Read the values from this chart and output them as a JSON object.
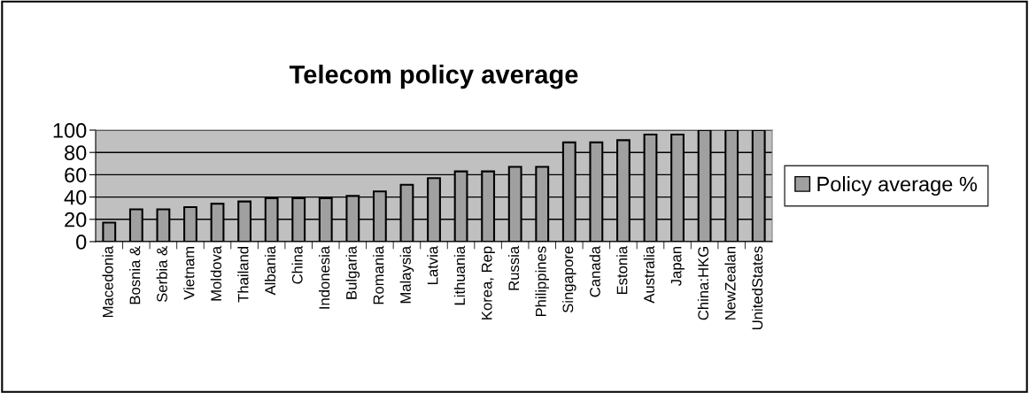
{
  "chart_data": {
    "type": "bar",
    "title": "Telecom policy average",
    "categories": [
      "Macedonia",
      "Bosnia &",
      "Serbia &",
      "Vietnam",
      "Moldova",
      "Thailand",
      "Albania",
      "China",
      "Indonesia",
      "Bulgaria",
      "Romania",
      "Malaysia",
      "Latvia",
      "Lithuania",
      "Korea, Rep",
      "Russia",
      "Philippines",
      "Singapore",
      "Canada",
      "Estonia",
      "Australia",
      "Japan",
      "China:HKG",
      "NewZealan",
      "UnitedStates"
    ],
    "series": [
      {
        "name": "Policy average %",
        "color": "#a0a0a0",
        "values": [
          17,
          29,
          29,
          31,
          34,
          36,
          39,
          39,
          39,
          41,
          45,
          51,
          57,
          63,
          63,
          67,
          67,
          89,
          89,
          91,
          96,
          96,
          100,
          100,
          100
        ]
      }
    ],
    "ylim": [
      0,
      100
    ],
    "yticks": [
      0,
      20,
      40,
      60,
      80,
      100
    ],
    "grid": "y",
    "legend": "right"
  }
}
